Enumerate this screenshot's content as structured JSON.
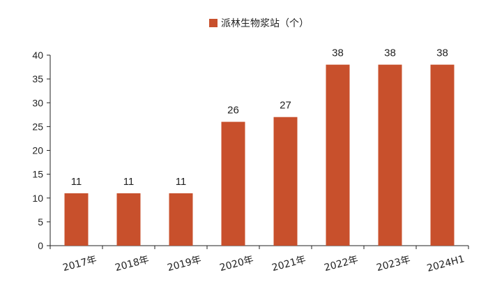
{
  "chart_data": {
    "type": "bar",
    "title": "",
    "xlabel": "",
    "ylabel": "",
    "categories": [
      "2017年",
      "2018年",
      "2019年",
      "2020年",
      "2021年",
      "2022年",
      "2023年",
      "2024H1"
    ],
    "series": [
      {
        "name": "派林生物浆站（个）",
        "values": [
          11,
          11,
          11,
          26,
          27,
          38,
          38,
          38
        ],
        "color": "#C8502C"
      }
    ],
    "ylim": [
      0,
      40
    ],
    "yticks": [
      0,
      5,
      10,
      15,
      20,
      25,
      30,
      35,
      40
    ],
    "grid": false,
    "legend_position": "top-center",
    "data_labels": true
  }
}
